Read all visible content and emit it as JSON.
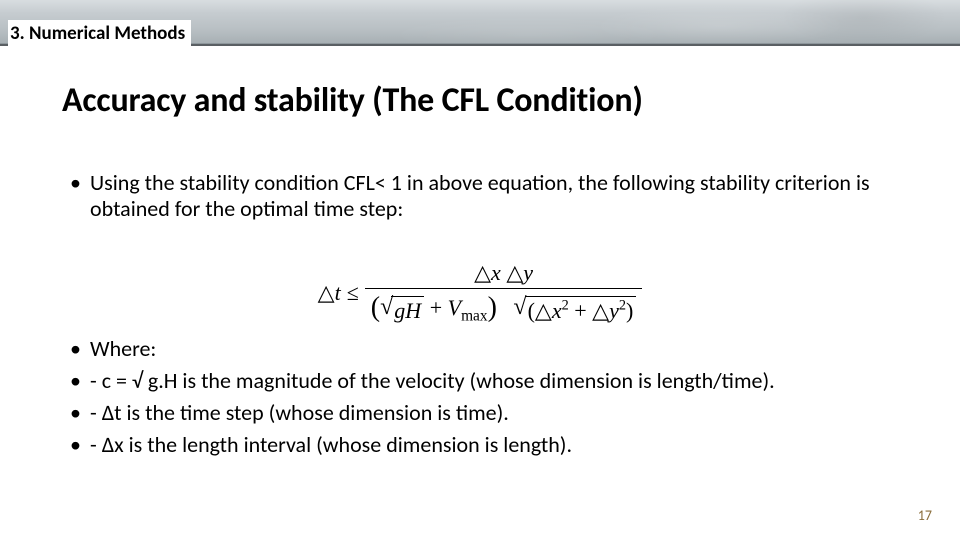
{
  "colors": {
    "background": "#ffffff",
    "text": "#000000",
    "header_gradient_top": "#d8dde0",
    "header_gradient_bottom": "#a8b0b4",
    "header_border": "#5a5f63",
    "pagenum": "#8a6d3b"
  },
  "fonts": {
    "body_family": "Calibri",
    "math_family": "Cambria Math",
    "section_size_pt": 14,
    "title_size_pt": 26,
    "body_size_pt": 17,
    "formula_size_pt": 17,
    "pagenum_size_pt": 11
  },
  "header": {
    "section": "3. Numerical Methods"
  },
  "title": "Accuracy and stability (The CFL Condition)",
  "bullets_top": [
    "Using the stability condition CFL< 1 in above equation, the following stability criterion is obtained for the optimal time step:"
  ],
  "formula": {
    "lhs": "△t",
    "relation": "≤",
    "numerator": "△x △y",
    "den_left_sqrt": "gH",
    "den_left_plus": "V",
    "den_left_sub": "max",
    "den_right_inside": "(△x² + △y²)"
  },
  "bullets_bottom": [
    "Where:",
    "- c = √ g.H is the magnitude of the velocity (whose dimension is length/time).",
    "- ∆t is the time step (whose dimension is time).",
    "- ∆x is the length interval (whose dimension is length)."
  ],
  "page_number": "17"
}
